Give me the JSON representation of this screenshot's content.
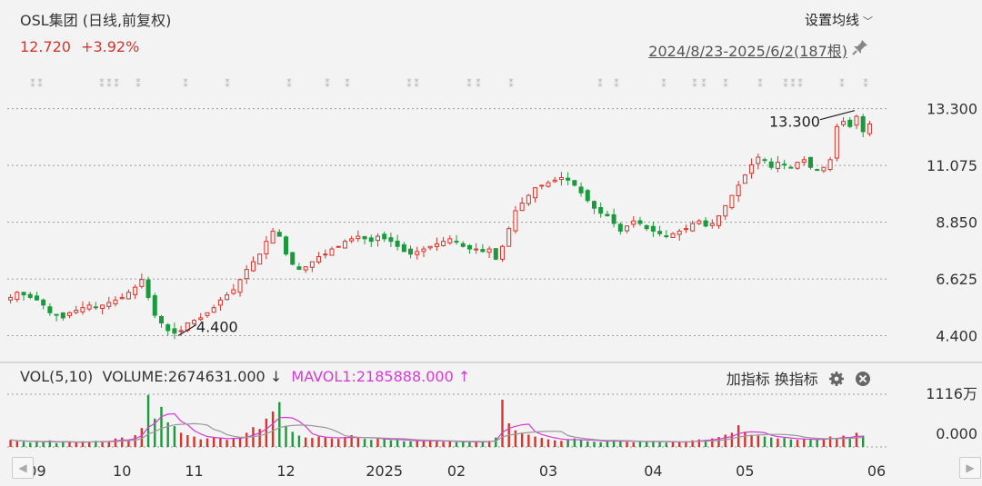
{
  "header": {
    "title": "OSL集团 (日线,前复权)",
    "price": "12.720",
    "change": "+3.92%",
    "ma_setting_label": "设置均线",
    "date_range": "2024/8/23-2025/6/2(187根)"
  },
  "vol_header": {
    "label": "VOL(5,10)",
    "volume": "VOLUME:2674631.000",
    "volume_arrow": "↓",
    "mavol": "MAVOL1:2185888.000",
    "mavol_arrow": "↑",
    "add_indicator": "加指标",
    "switch_indicator": "换指标"
  },
  "colors": {
    "up": "#d9342b",
    "down": "#1a9a3c",
    "mavol": "#d63bd6",
    "mavol2": "#999999"
  },
  "chart_data": [
    {
      "type": "candlestick",
      "title": "OSL集团 (日线,前复权)",
      "x_tick_labels": [
        "09",
        "10",
        "11",
        "12",
        "2025",
        "02",
        "03",
        "04",
        "05",
        "06"
      ],
      "y_tick_labels": [
        "13.300",
        "11.075",
        "8.850",
        "6.625",
        "4.400"
      ],
      "ylim": [
        3.6,
        14.0
      ],
      "grid": "horizontal dotted",
      "annotations": [
        {
          "text": "13.300",
          "meaning": "period high"
        },
        {
          "text": "4.400",
          "meaning": "period low"
        }
      ],
      "close_series_estimated": [
        5.9,
        6.1,
        6.0,
        5.9,
        5.8,
        5.6,
        5.3,
        5.2,
        5.1,
        5.3,
        5.4,
        5.5,
        5.6,
        5.5,
        5.6,
        5.7,
        5.8,
        5.9,
        6.1,
        6.3,
        6.6,
        5.9,
        5.2,
        4.9,
        4.6,
        4.5,
        4.6,
        4.9,
        5.0,
        5.1,
        5.3,
        5.5,
        5.8,
        6.0,
        6.2,
        6.6,
        7.0,
        7.3,
        7.6,
        8.1,
        8.5,
        8.3,
        7.6,
        7.2,
        7.0,
        7.1,
        7.3,
        7.5,
        7.6,
        7.8,
        7.9,
        8.1,
        8.2,
        8.3,
        8.2,
        8.1,
        8.3,
        8.2,
        8.1,
        7.9,
        7.7,
        7.6,
        7.7,
        7.8,
        7.9,
        8.0,
        8.1,
        8.2,
        8.1,
        7.9,
        7.8,
        7.8,
        7.7,
        7.8,
        7.4,
        7.9,
        8.6,
        9.3,
        9.6,
        9.9,
        10.2,
        10.3,
        10.4,
        10.5,
        10.6,
        10.5,
        10.3,
        10.0,
        9.7,
        9.4,
        9.2,
        9.1,
        8.8,
        8.5,
        8.7,
        8.9,
        8.8,
        8.6,
        8.5,
        8.4,
        8.3,
        8.4,
        8.5,
        8.6,
        8.8,
        8.9,
        8.7,
        8.8,
        9.1,
        9.5,
        9.9,
        10.3,
        10.7,
        11.1,
        11.4,
        11.3,
        11.0,
        11.2,
        11.1,
        11.0,
        11.2,
        11.3,
        11.0,
        10.9,
        11.0,
        11.3,
        12.6,
        12.8,
        12.6,
        13.0,
        12.4,
        12.7
      ],
      "volume_ylim": [
        0,
        11160000
      ],
      "volume_tick_labels": [
        "1116万",
        "0.000"
      ],
      "volume_series_estimated": [
        1.5,
        1.2,
        1.1,
        0.9,
        1.2,
        1.0,
        1.4,
        0.8,
        1.0,
        1.1,
        0.9,
        1.2,
        1.0,
        1.3,
        1.2,
        1.1,
        1.8,
        2.0,
        1.4,
        2.5,
        4.0,
        11.0,
        6.0,
        8.5,
        5.2,
        4.4,
        3.0,
        2.5,
        2.2,
        1.6,
        1.8,
        2.0,
        1.9,
        1.5,
        1.8,
        2.0,
        3.0,
        4.2,
        3.8,
        6.0,
        7.5,
        9.5,
        4.5,
        3.2,
        2.4,
        2.0,
        1.9,
        2.2,
        2.0,
        1.8,
        1.7,
        2.1,
        2.5,
        1.9,
        1.7,
        1.5,
        1.8,
        1.7,
        1.4,
        1.5,
        1.2,
        1.2,
        1.3,
        1.4,
        1.3,
        1.2,
        1.1,
        1.3,
        1.0,
        1.1,
        1.0,
        1.0,
        1.2,
        1.3,
        2.0,
        10.0,
        5.0,
        3.5,
        3.0,
        2.6,
        2.2,
        1.9,
        1.6,
        1.4,
        1.3,
        1.6,
        1.8,
        1.5,
        1.2,
        1.1,
        1.0,
        1.3,
        1.5,
        1.2,
        1.1,
        1.0,
        1.1,
        1.2,
        1.3,
        1.0,
        0.9,
        1.0,
        1.1,
        1.2,
        1.4,
        1.6,
        1.5,
        1.8,
        2.1,
        2.6,
        3.0,
        4.6,
        3.2,
        2.6,
        2.4,
        2.2,
        2.0,
        1.8,
        1.9,
        1.6,
        1.5,
        1.7,
        1.5,
        1.6,
        1.8,
        2.2,
        1.9,
        2.4,
        1.7,
        3.0,
        2.4
      ]
    }
  ]
}
